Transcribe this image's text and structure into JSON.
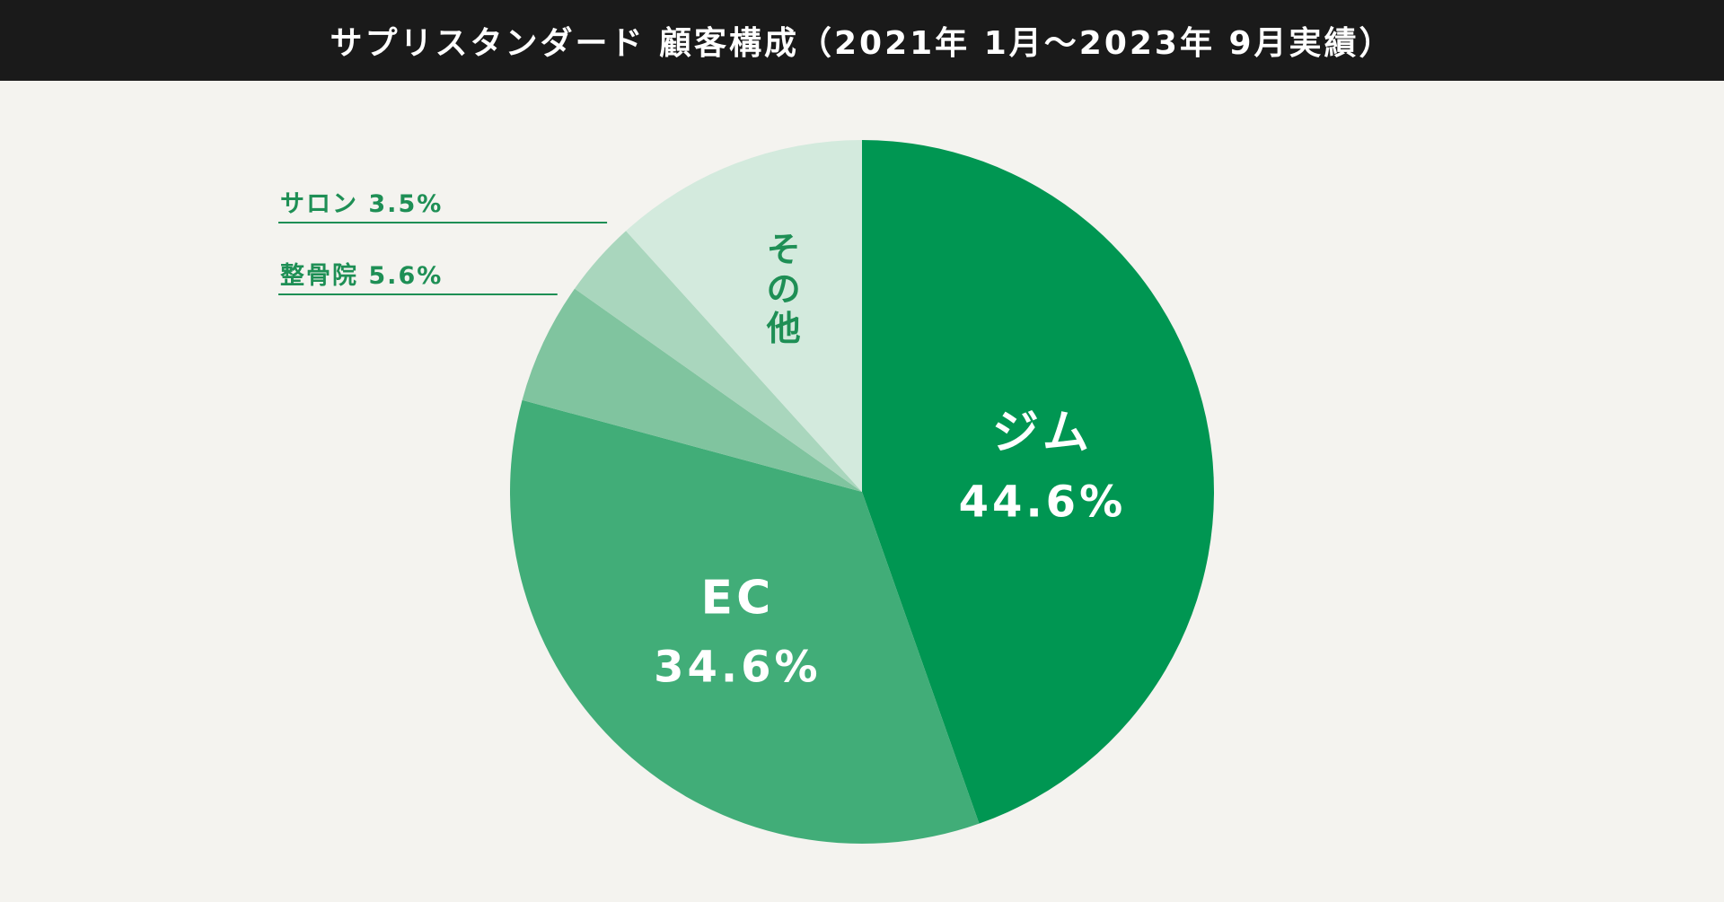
{
  "title": "サプリスタンダード 顧客構成（2021年 1月〜2023年 9月実績）",
  "chart_data": {
    "type": "pie",
    "title": "サプリスタンダード 顧客構成（2021年 1月〜2023年 9月実績）",
    "start_angle": "12 o'clock",
    "direction": "clockwise",
    "slices": [
      {
        "key": "gym",
        "label": "ジム",
        "value": 44.6,
        "value_label": "44.6%",
        "color": "#009652"
      },
      {
        "key": "ec",
        "label": "EC",
        "value": 34.6,
        "value_label": "34.6%",
        "color": "#41ad78"
      },
      {
        "key": "seikotsu",
        "label": "整骨院",
        "value": 5.6,
        "value_label": "5.6%",
        "color": "#80c49f"
      },
      {
        "key": "salon",
        "label": "サロン",
        "value": 3.5,
        "value_label": "3.5%",
        "color": "#a9d6bd"
      },
      {
        "key": "other",
        "label": "その他",
        "value": 11.7,
        "value_label": "",
        "color": "#d3eadd"
      }
    ]
  }
}
